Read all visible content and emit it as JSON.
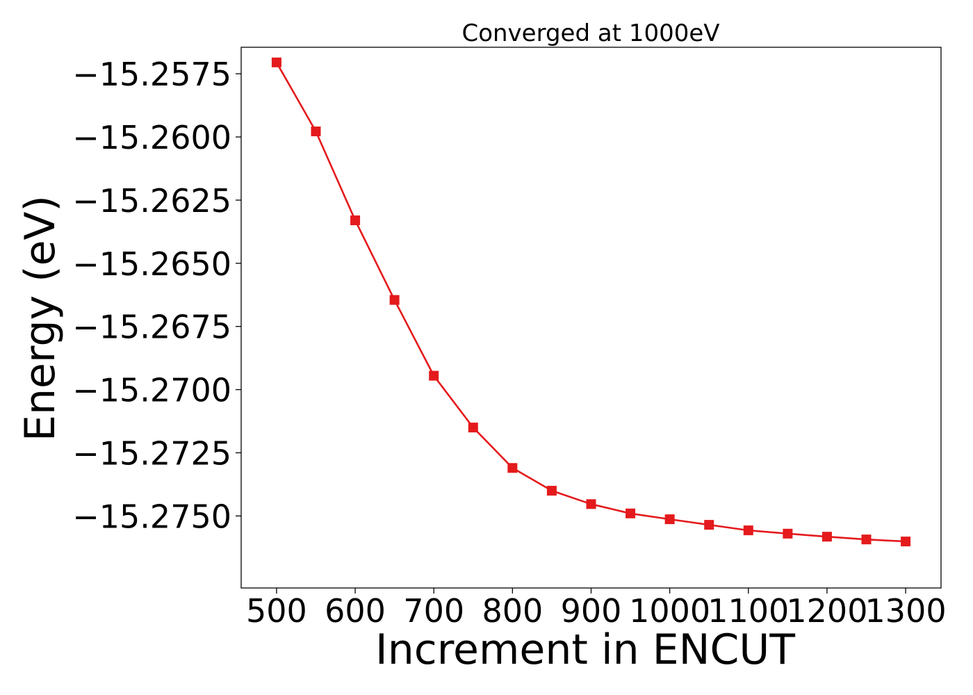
{
  "chart_data": {
    "type": "line",
    "title": "Converged at 1000eV",
    "xlabel": "Increment in ENCUT",
    "ylabel": "Energy (eV)",
    "xlim": [
      455,
      1345
    ],
    "ylim": [
      -15.27785,
      -15.25645
    ],
    "x_ticks": [
      500,
      600,
      700,
      800,
      900,
      1000,
      1100,
      1200,
      1300
    ],
    "x_tick_labels": [
      "500",
      "600",
      "700",
      "800",
      "900",
      "1000",
      "1100",
      "1200",
      "1300"
    ],
    "y_ticks": [
      -15.2575,
      -15.26,
      -15.2625,
      -15.265,
      -15.2675,
      -15.27,
      -15.2725,
      -15.275
    ],
    "y_tick_labels": [
      "−15.2575",
      "−15.2600",
      "−15.2625",
      "−15.2650",
      "−15.2675",
      "−15.2700",
      "−15.2725",
      "−15.2750"
    ],
    "grid": false,
    "series": [
      {
        "color": "#e41a1c",
        "marker": "square",
        "x": [
          500,
          550,
          600,
          650,
          700,
          750,
          800,
          850,
          900,
          950,
          1000,
          1050,
          1100,
          1150,
          1200,
          1250,
          1300
        ],
        "y": [
          -15.25705,
          -15.25978,
          -15.2633,
          -15.26645,
          -15.26945,
          -15.2715,
          -15.2731,
          -15.274,
          -15.27453,
          -15.2749,
          -15.27513,
          -15.27535,
          -15.27557,
          -15.2757,
          -15.27582,
          -15.27593,
          -15.27601
        ]
      }
    ]
  }
}
